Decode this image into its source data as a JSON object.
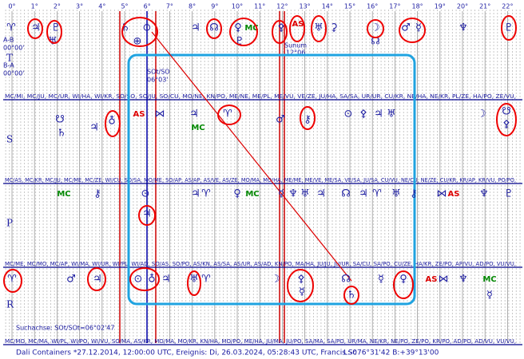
{
  "scale": [
    "0°",
    "1°",
    "2°",
    "3°",
    "4°",
    "5°",
    "6°",
    "7°",
    "8°",
    "9°",
    "10°",
    "11°",
    "12°",
    "13°",
    "14°",
    "15°",
    "16°",
    "17°",
    "18°",
    "19°",
    "20°",
    "21°",
    "22°"
  ],
  "rows": [
    {
      "label": "T",
      "aspects": "MC/MI, MC/JU, MC/UR, WI/HA, WI/KR, SO/SO, SO/JU, SO/CU, MO/NE, KN/PO, ME/NE, ME/PL, ME/VU, VE/ZE, JU/HA, SA/SA, UR/UR, CU/KR, NE/HA, NE/KR, PL/ZE, HA/PO, ZE/VU,"
    },
    {
      "label": "S",
      "aspects": "MC/AS, MC/KR, MC/JU, MC/ME, MC/ZE, WI/CU, SO/SA, MO/ME, SO/AP, AS/AP, AS/VE, AS/ZE, MO/MA, MO/HA, ME/ME, ME/VE, ME/SA, VE/SA, JU/SA, CU/VU, NE/CU, NE/ZE, CU/KR, KR/AP, KR/VU, PO/PO,"
    },
    {
      "label": "P",
      "aspects": "MC/ME, MC/MO, MC/AP, WI/MA, WI/UR, WI/PL, WI/AD, SO/AS, SO/PO, AS/KN, AS/SA, AS/UR, AS/AD, KN/PO, MA/HA, JU/JU, JU/UR, SA/CU, SA/PO, CU/ZE, HA/KR, ZE/PO, AP/VU, AD/PO, VU/VU,"
    },
    {
      "label": "R",
      "aspects": "MC/MO, MC/MA, WI/PL, WI/PO, WI/VU, SO/MA, AS/KR, MO/MA, MO/KR, KN/HA, MO/PO, ME/HA, JU/MA, JU/PO, SA/MA, SA/PO, UR/MA, NE/KR, NE/PO, ZE/PO, KR/PO, AD/PO, AD/VU, VU/VU,"
    }
  ],
  "glyphs": {
    "T": [
      "♈",
      "♃",
      "♇",
      "♅",
      "♄",
      "⊙",
      "⊕",
      "♃",
      "☊",
      "♀",
      "MC",
      "♇",
      "⚴",
      "AS",
      "♅",
      "⚳",
      "☽",
      "☊",
      "♂",
      "☿",
      "♆",
      "♇"
    ],
    "S": [
      "☋",
      "♄",
      "♃",
      "♁",
      "AS",
      "⋈",
      "♃",
      "MC",
      "♈",
      "♂",
      "⚷",
      "⊙",
      "⚴",
      "♃",
      "♅",
      "☽",
      "☋",
      "⚴"
    ],
    "P": [
      "MC",
      "⚷",
      "⊙",
      "♃",
      "♃",
      "♈",
      "♀",
      "MC",
      "☿",
      "♆",
      "♅",
      "♃",
      "☊",
      "♃",
      "♈",
      "♅",
      "⚷",
      "⋈",
      "AS",
      "♆",
      "♇"
    ],
    "R": [
      "♈",
      "♂",
      "♃",
      "⊙",
      "♁",
      "♃",
      "♅",
      "♈",
      "☽",
      "⚴",
      "☿",
      "☊",
      "♄",
      "☿",
      "♀",
      "AS",
      "⋈",
      "♆",
      "MC",
      "☿"
    ]
  },
  "notes": {
    "ab": "A-B",
    "ab_val": "00°00'",
    "ba": "B-A",
    "ba_val": "00°00'",
    "sot": "SOt/SO",
    "sot_val": "06°03'",
    "sunum": "Sunum",
    "sunum_val": "12°06",
    "axis": "Suchachse: SOt/SOt=06°02'47"
  },
  "footer": "Dali Containers  *27.12.2014, 12:00:00 UTC, Ereignis: Di, 26.03.2024, 05:28:43 UTC, Francis Sc",
  "coords": "L:-076°31'42 B:+39°13'00"
}
